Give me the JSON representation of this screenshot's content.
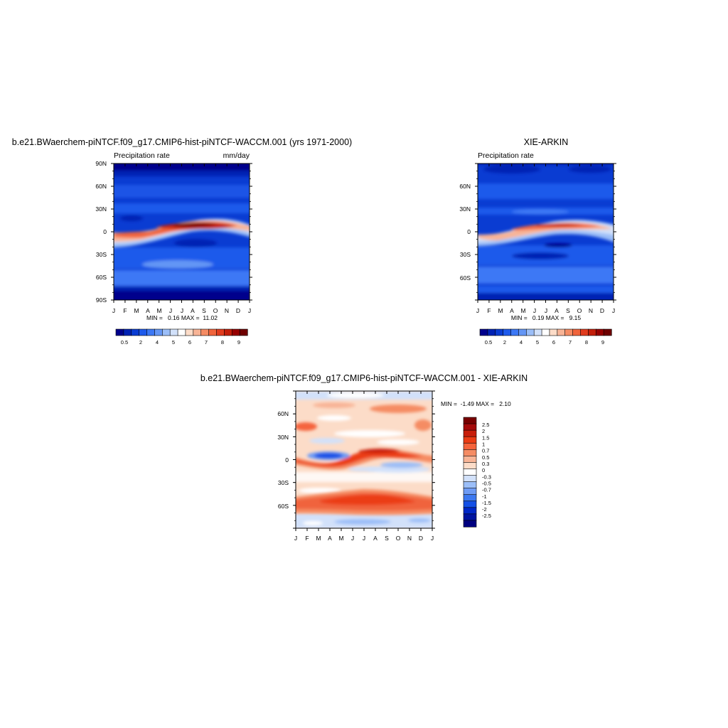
{
  "panels": [
    {
      "id": "model",
      "title": "b.e21.BWaerchem-piNTCF.f09_g17.CMIP6-hist-piNTCF-WACCM.001 (yrs 1971-2000)",
      "left_string": "Precipitation rate",
      "right_string": "mm/day",
      "stats": "MIN =   0.16 MAX =  11.02",
      "y_ticks": [
        "90N",
        "60N",
        "30N",
        "0",
        "30S",
        "60S",
        "90S"
      ],
      "x_ticks": [
        "J",
        "F",
        "M",
        "A",
        "M",
        "J",
        "J",
        "A",
        "S",
        "O",
        "N",
        "D",
        "J"
      ]
    },
    {
      "id": "obs",
      "title": "XIE-ARKIN",
      "left_string": "Precipitation rate",
      "right_string": "",
      "stats": "MIN =   0.19 MAX =   9.15",
      "y_ticks": [
        "60N",
        "30N",
        "0",
        "30S",
        "60S"
      ],
      "x_ticks": [
        "J",
        "F",
        "M",
        "A",
        "M",
        "J",
        "J",
        "A",
        "S",
        "O",
        "N",
        "D",
        "J"
      ]
    },
    {
      "id": "diff",
      "title": "b.e21.BWaerchem-piNTCF.f09_g17.CMIP6-hist-piNTCF-WACCM.001 - XIE-ARKIN",
      "left_string": "",
      "right_string": "",
      "stats": "MIN =  -1.49 MAX =   2.10",
      "y_ticks": [
        "60N",
        "30N",
        "0",
        "30S",
        "60S"
      ],
      "x_ticks": [
        "J",
        "F",
        "M",
        "A",
        "M",
        "J",
        "J",
        "A",
        "S",
        "O",
        "N",
        "D",
        "J"
      ]
    }
  ],
  "colorbars": {
    "precip": {
      "labels": [
        "0.5",
        "2",
        "4",
        "5",
        "6",
        "7",
        "8",
        "9"
      ],
      "colors": [
        "#00008c",
        "#0022b4",
        "#0a3cd2",
        "#1e5aeb",
        "#3c78f5",
        "#6496f5",
        "#9bbef8",
        "#d2e1fa",
        "#ffffff",
        "#fcdcc8",
        "#f8b496",
        "#f58c64",
        "#f0643c",
        "#e13c1e",
        "#c31e0a",
        "#960000",
        "#6e0000"
      ]
    },
    "diff": {
      "labels": [
        "2.5",
        "2",
        "1.5",
        "1",
        "0.7",
        "0.5",
        "0.3",
        "0",
        "-0.3",
        "-0.5",
        "-0.7",
        "-1",
        "-1.5",
        "-2",
        "-2.5"
      ],
      "colors": [
        "#780000",
        "#a50a0a",
        "#c81e0a",
        "#eb3c14",
        "#f5643c",
        "#f58c64",
        "#f8b496",
        "#fcdcc8",
        "#ffffff",
        "#d2e1fa",
        "#9bbef8",
        "#6e9bf5",
        "#3c78f0",
        "#1450e6",
        "#0028c8",
        "#0014a0",
        "#000080"
      ]
    }
  },
  "chart_data": [
    {
      "type": "heatmap",
      "title": "b.e21.BWaerchem-piNTCF.f09_g17.CMIP6-hist-piNTCF-WACCM.001 (yrs 1971-2000)",
      "subtitle": "Precipitation rate",
      "units": "mm/day",
      "x": [
        "J",
        "F",
        "M",
        "A",
        "M",
        "J",
        "J",
        "A",
        "S",
        "O",
        "N",
        "D",
        "J"
      ],
      "ylim": [
        -90,
        90
      ],
      "contour_levels": [
        0.5,
        1,
        2,
        3,
        4,
        4.5,
        5,
        5.5,
        6,
        6.5,
        7,
        7.5,
        8,
        8.5,
        9,
        10
      ],
      "min": 0.16,
      "max": 11.02,
      "grid": false
    },
    {
      "type": "heatmap",
      "title": "XIE-ARKIN",
      "subtitle": "Precipitation rate",
      "x": [
        "J",
        "F",
        "M",
        "A",
        "M",
        "J",
        "J",
        "A",
        "S",
        "O",
        "N",
        "D",
        "J"
      ],
      "ylim": [
        -90,
        90
      ],
      "contour_levels": [
        0.5,
        1,
        2,
        3,
        4,
        4.5,
        5,
        5.5,
        6,
        6.5,
        7,
        7.5,
        8,
        8.5,
        9,
        10
      ],
      "min": 0.19,
      "max": 9.15,
      "grid": false
    },
    {
      "type": "heatmap",
      "title": "b.e21.BWaerchem-piNTCF.f09_g17.CMIP6-hist-piNTCF-WACCM.001 - XIE-ARKIN",
      "x": [
        "J",
        "F",
        "M",
        "A",
        "M",
        "J",
        "J",
        "A",
        "S",
        "O",
        "N",
        "D",
        "J"
      ],
      "ylim": [
        -90,
        90
      ],
      "contour_levels": [
        -2.5,
        -2,
        -1.5,
        -1,
        -0.7,
        -0.5,
        -0.3,
        0,
        0.3,
        0.5,
        0.7,
        1,
        1.5,
        2,
        2.5
      ],
      "min": -1.49,
      "max": 2.1,
      "grid": false
    }
  ]
}
